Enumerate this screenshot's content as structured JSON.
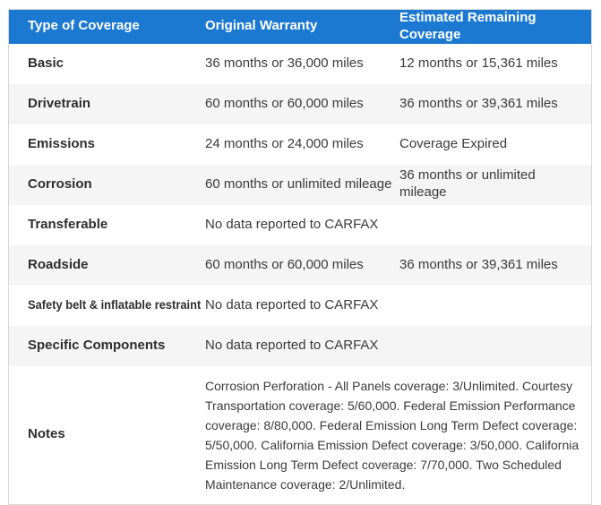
{
  "table": {
    "headers": [
      {
        "label": "Type of Coverage"
      },
      {
        "label": "Original Warranty"
      },
      {
        "label": "Estimated Remaining Coverage"
      }
    ],
    "rows": [
      {
        "type": "Basic",
        "original": "36 months or 36,000 miles",
        "remaining": "12 months or 15,361 miles"
      },
      {
        "type": "Drivetrain",
        "original": "60 months or 60,000 miles",
        "remaining": "36 months or 39,361 miles"
      },
      {
        "type": "Emissions",
        "original": "24 months or 24,000 miles",
        "remaining": "Coverage Expired"
      },
      {
        "type": "Corrosion",
        "original": "60 months or unlimited mileage",
        "remaining": "36 months or unlimited mileage"
      },
      {
        "type": "Transferable",
        "original": "No data reported to CARFAX",
        "remaining": ""
      },
      {
        "type": "Roadside",
        "original": "60 months or 60,000 miles",
        "remaining": "36 months or 39,361 miles"
      },
      {
        "type": "Safety belt & inflatable restraint",
        "original": "No data reported to CARFAX",
        "remaining": ""
      },
      {
        "type": "Specific Components",
        "original": "No data reported to CARFAX",
        "remaining": ""
      }
    ],
    "notes": {
      "label": "Notes",
      "text": "Corrosion Perforation - All Panels coverage: 3/Unlimited. Courtesy Transportation coverage: 5/60,000. Federal Emission Performance coverage: 8/80,000. Federal Emission Long Term Defect coverage: 5/50,000. California Emission Defect coverage: 3/50,000. California Emission Long Term Defect coverage: 7/70,000. Two Scheduled Maintenance coverage: 2/Unlimited."
    },
    "colors": {
      "header_bg": "#1c79d2",
      "header_text": "#ffffff",
      "alt_row_bg": "#f5f5f5",
      "row_bg": "#ffffff",
      "body_text": "#333333",
      "border": "#d8d8d8"
    }
  }
}
